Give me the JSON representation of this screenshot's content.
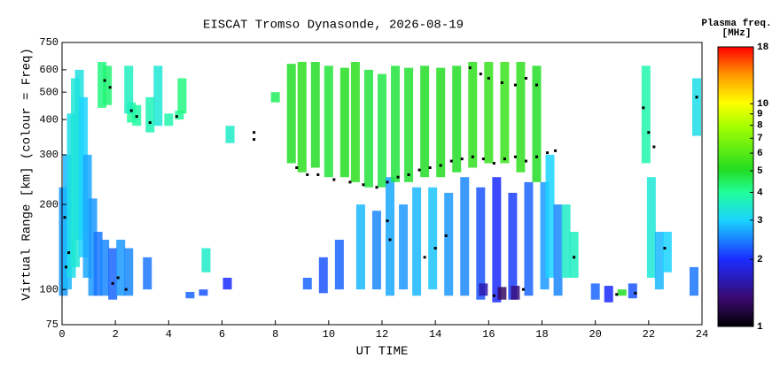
{
  "chart_data": {
    "type": "scatter",
    "title": "EISCAT Tromso Dynasonde, 2026-08-19",
    "xlabel": "UT TIME",
    "ylabel": "Virtual Range [km] (colour = Freq)",
    "xlim": [
      0,
      24
    ],
    "xticks": [
      0,
      2,
      4,
      6,
      8,
      10,
      12,
      14,
      16,
      18,
      20,
      22,
      24
    ],
    "ylim": [
      75,
      750
    ],
    "yticks": [
      75,
      100,
      200,
      300,
      400,
      500,
      600,
      750
    ],
    "log_y": true,
    "colorbar": {
      "label": "Plasma freq.",
      "units": "[MHz]",
      "lim": [
        1,
        18
      ],
      "ticks": [
        1,
        2,
        3,
        4,
        5,
        6,
        7,
        8,
        9,
        10,
        18
      ],
      "log": true
    },
    "echoes": {
      "x": [
        0.05,
        0.2,
        0.35,
        0.5,
        0.65,
        0.8,
        0.95,
        1.15,
        1.35,
        1.5,
        1.7,
        1.6,
        1.9,
        2.2,
        2.5,
        2.6,
        2.8,
        3.2,
        3.3,
        2.5,
        3.6,
        4.0,
        4.4,
        4.5,
        4.8,
        5.3,
        5.4,
        6.2,
        6.3,
        8.0,
        8.6,
        9.0,
        9.2,
        9.5,
        9.8,
        10.0,
        10.4,
        10.6,
        11.0,
        11.2,
        11.5,
        11.8,
        12.0,
        12.3,
        12.5,
        12.8,
        13.0,
        13.3,
        13.6,
        13.9,
        14.2,
        14.5,
        14.8,
        15.1,
        15.4,
        15.7,
        16.0,
        16.3,
        16.6,
        16.9,
        17.2,
        17.5,
        17.8,
        18.1,
        18.3,
        18.6,
        18.9,
        19.2,
        16.5,
        17.0,
        15.8,
        20.0,
        20.5,
        21.0,
        21.4,
        21.9,
        22.1,
        22.4,
        22.7,
        23.7,
        23.8
      ],
      "y_low": [
        95,
        100,
        110,
        120,
        150,
        130,
        110,
        95,
        95,
        440,
        450,
        95,
        92,
        95,
        95,
        390,
        380,
        100,
        360,
        420,
        380,
        380,
        400,
        420,
        93,
        95,
        115,
        100,
        330,
        460,
        280,
        260,
        100,
        270,
        97,
        250,
        100,
        250,
        240,
        100,
        230,
        100,
        230,
        95,
        240,
        100,
        240,
        95,
        250,
        100,
        250,
        95,
        260,
        95,
        270,
        92,
        280,
        90,
        280,
        92,
        260,
        95,
        240,
        100,
        110,
        95,
        110,
        110,
        92,
        92,
        95,
        92,
        90,
        95,
        93,
        280,
        110,
        100,
        115,
        95,
        350
      ],
      "y_high": [
        230,
        300,
        420,
        560,
        600,
        480,
        300,
        210,
        160,
        640,
        620,
        150,
        140,
        150,
        140,
        460,
        450,
        130,
        480,
        620,
        620,
        420,
        430,
        560,
        98,
        100,
        140,
        110,
        380,
        500,
        630,
        640,
        110,
        640,
        130,
        620,
        150,
        610,
        640,
        200,
        600,
        190,
        580,
        250,
        620,
        200,
        610,
        230,
        620,
        230,
        610,
        220,
        620,
        250,
        640,
        230,
        640,
        250,
        640,
        220,
        640,
        240,
        620,
        240,
        300,
        200,
        200,
        160,
        102,
        103,
        105,
        105,
        103,
        100,
        105,
        620,
        250,
        160,
        160,
        120,
        560
      ],
      "freq": [
        2.6,
        2.8,
        3.2,
        3.4,
        3.3,
        3.0,
        2.7,
        2.6,
        2.4,
        4.2,
        4.3,
        2.5,
        2.3,
        2.6,
        2.5,
        4.0,
        3.9,
        2.4,
        3.7,
        3.6,
        3.4,
        3.8,
        4.0,
        4.2,
        2.3,
        2.2,
        3.5,
        2.0,
        3.5,
        4.5,
        5.0,
        5.2,
        2.3,
        5.0,
        2.2,
        4.8,
        2.3,
        5.1,
        5.2,
        2.8,
        4.8,
        2.5,
        4.7,
        2.7,
        4.8,
        2.6,
        4.9,
        2.8,
        5.0,
        2.9,
        5.1,
        2.6,
        5.0,
        2.5,
        5.3,
        2.2,
        5.4,
        2.0,
        5.5,
        2.1,
        5.3,
        2.3,
        5.0,
        2.6,
        3.0,
        2.5,
        3.5,
        3.6,
        1.3,
        1.4,
        1.6,
        2.3,
        2.0,
        5.0,
        2.2,
        3.8,
        3.4,
        2.8,
        3.0,
        2.4,
        3.2
      ]
    },
    "series": [
      {
        "color": "#000000",
        "x": [
          0.1,
          0.15,
          0.25,
          1.6,
          1.8,
          2.6,
          2.8,
          3.3,
          4.3,
          7.2,
          7.2,
          2.1,
          2.4,
          1.9,
          8.8,
          9.2,
          9.6,
          10.2,
          10.8,
          11.3,
          11.8,
          12.2,
          12.6,
          13.0,
          13.4,
          13.8,
          14.2,
          14.6,
          15.0,
          15.4,
          15.8,
          16.2,
          16.6,
          17.0,
          17.4,
          17.8,
          18.2,
          18.5,
          12.2,
          12.3,
          13.6,
          14.0,
          14.4,
          15.3,
          15.7,
          16.0,
          16.5,
          17.0,
          17.4,
          17.8,
          19.2,
          20.8,
          21.5,
          21.8,
          22.0,
          22.2,
          22.6,
          23.8,
          16.2,
          17.3
        ],
        "y": [
          180,
          120,
          135,
          550,
          520,
          430,
          410,
          390,
          410,
          360,
          340,
          110,
          100,
          105,
          270,
          255,
          255,
          245,
          240,
          235,
          230,
          240,
          250,
          255,
          265,
          270,
          275,
          285,
          290,
          295,
          290,
          280,
          290,
          295,
          285,
          295,
          305,
          310,
          175,
          150,
          130,
          140,
          155,
          610,
          580,
          560,
          540,
          530,
          560,
          530,
          130,
          96,
          97,
          440,
          360,
          320,
          140,
          480,
          95,
          100
        ]
      }
    ]
  }
}
